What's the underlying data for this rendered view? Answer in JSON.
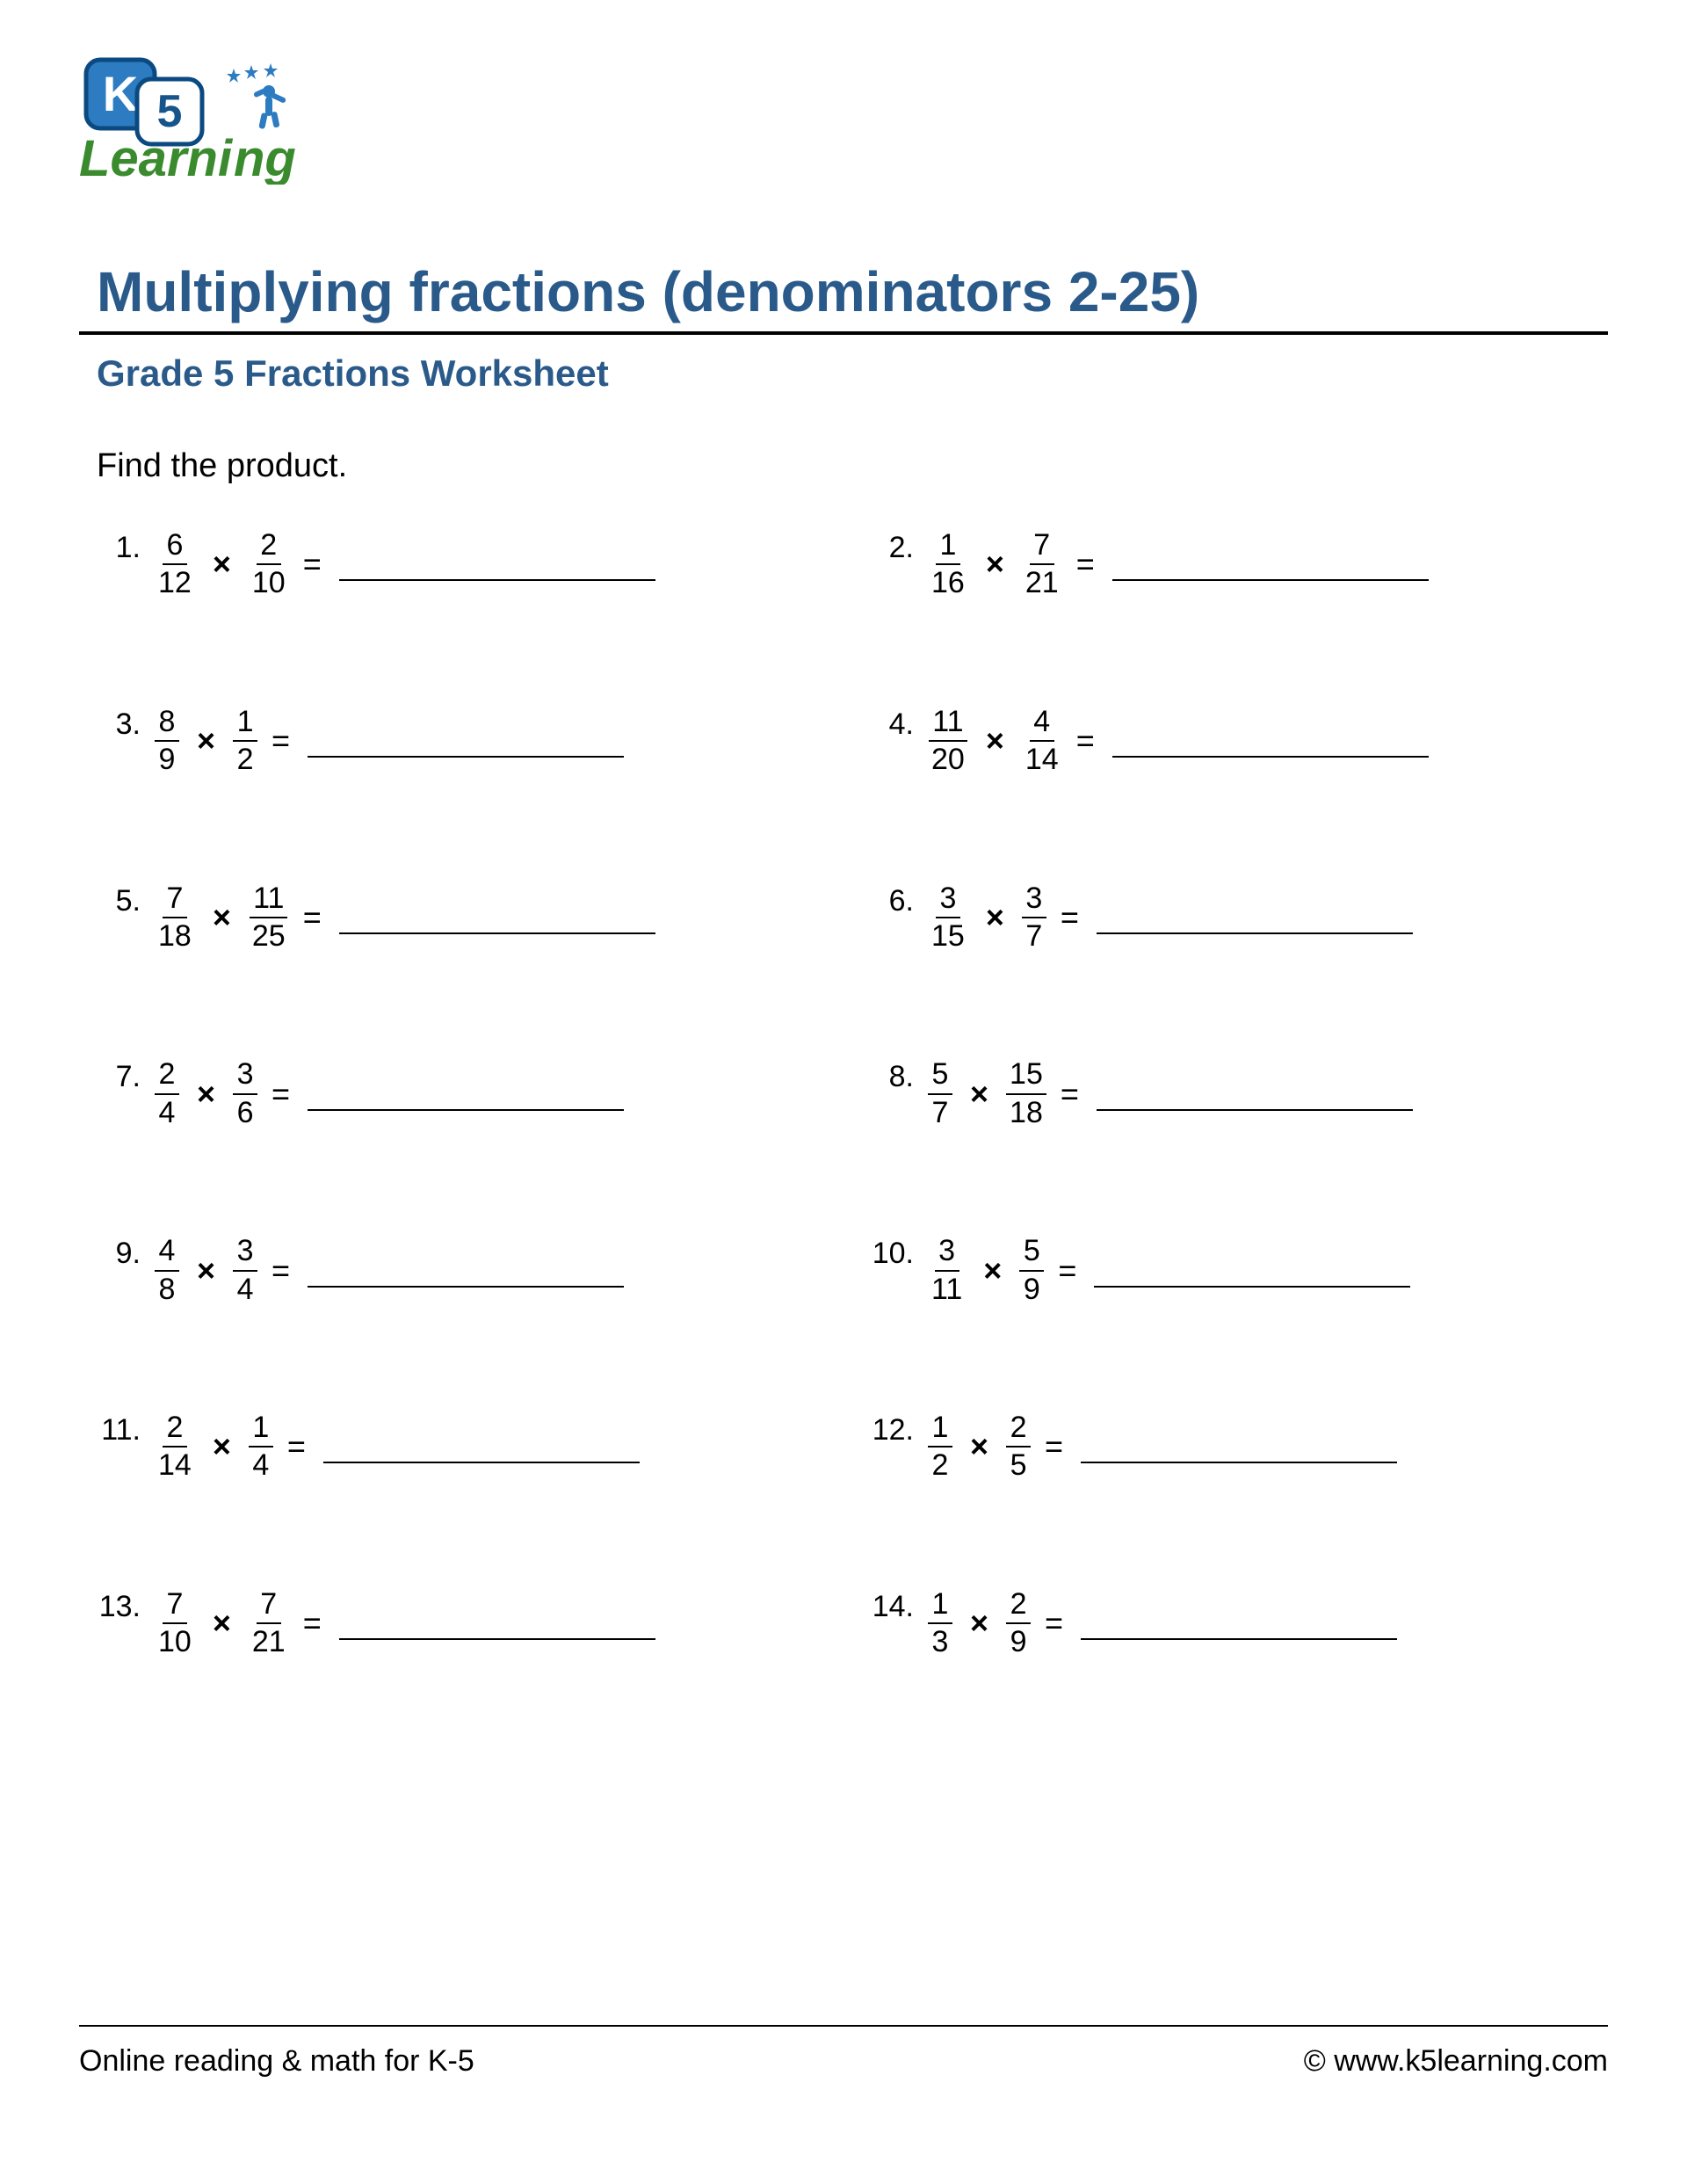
{
  "logo": {
    "text_k": "K",
    "text_5": "5",
    "text_learning": "Learning",
    "badge_fill": "#2d7bc0",
    "badge_stroke": "#0b4a80",
    "k_color": "#ffffff",
    "five_fill": "#ffffff",
    "five_text": "#16548c",
    "learning_color": "#3a8a2e",
    "star_color": "#2d7bc0",
    "figure_color": "#2d7bc0"
  },
  "header": {
    "title": "Multiplying fractions (denominators 2-25)",
    "subtitle": "Grade 5 Fractions Worksheet",
    "instruction": "Find the product.",
    "title_color": "#2a5a8a",
    "subtitle_color": "#2a5a8a",
    "title_fontsize": 64,
    "subtitle_fontsize": 42,
    "instruction_fontsize": 38,
    "rule_color": "#000000"
  },
  "layout": {
    "columns": 2,
    "row_gap": 120,
    "answer_line_width": 360,
    "background_color": "#ffffff",
    "text_color": "#000000",
    "fraction_bar_color": "#000000",
    "answer_line_color": "#000000",
    "body_fontsize": 34
  },
  "problems": [
    {
      "n": "1.",
      "a_num": "6",
      "a_den": "12",
      "b_num": "2",
      "b_den": "10"
    },
    {
      "n": "2.",
      "a_num": "1",
      "a_den": "16",
      "b_num": "7",
      "b_den": "21"
    },
    {
      "n": "3.",
      "a_num": "8",
      "a_den": "9",
      "b_num": "1",
      "b_den": "2"
    },
    {
      "n": "4.",
      "a_num": "11",
      "a_den": "20",
      "b_num": "4",
      "b_den": "14"
    },
    {
      "n": "5.",
      "a_num": "7",
      "a_den": "18",
      "b_num": "11",
      "b_den": "25"
    },
    {
      "n": "6.",
      "a_num": "3",
      "a_den": "15",
      "b_num": "3",
      "b_den": "7"
    },
    {
      "n": "7.",
      "a_num": "2",
      "a_den": "4",
      "b_num": "3",
      "b_den": "6"
    },
    {
      "n": "8.",
      "a_num": "5",
      "a_den": "7",
      "b_num": "15",
      "b_den": "18"
    },
    {
      "n": "9.",
      "a_num": "4",
      "a_den": "8",
      "b_num": "3",
      "b_den": "4"
    },
    {
      "n": "10.",
      "a_num": "3",
      "a_den": "11",
      "b_num": "5",
      "b_den": "9"
    },
    {
      "n": "11.",
      "a_num": "2",
      "a_den": "14",
      "b_num": "1",
      "b_den": "4"
    },
    {
      "n": "12.",
      "a_num": "1",
      "a_den": "2",
      "b_num": "2",
      "b_den": "5"
    },
    {
      "n": "13.",
      "a_num": "7",
      "a_den": "10",
      "b_num": "7",
      "b_den": "21"
    },
    {
      "n": "14.",
      "a_num": "1",
      "a_den": "3",
      "b_num": "2",
      "b_den": "9"
    }
  ],
  "symbols": {
    "times": "×",
    "equals": "="
  },
  "footer": {
    "left": "Online reading & math for K-5",
    "right": "©  www.k5learning.com",
    "fontsize": 34,
    "rule_color": "#000000"
  }
}
